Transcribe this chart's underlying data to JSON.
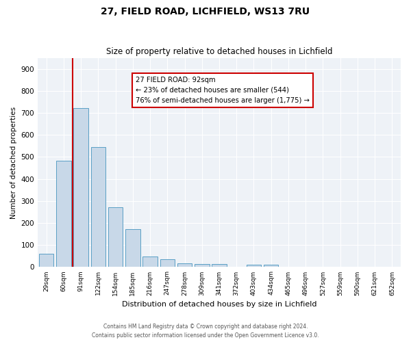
{
  "title1": "27, FIELD ROAD, LICHFIELD, WS13 7RU",
  "title2": "Size of property relative to detached houses in Lichfield",
  "xlabel": "Distribution of detached houses by size in Lichfield",
  "ylabel": "Number of detached properties",
  "categories": [
    "29sqm",
    "60sqm",
    "91sqm",
    "122sqm",
    "154sqm",
    "185sqm",
    "216sqm",
    "247sqm",
    "278sqm",
    "309sqm",
    "341sqm",
    "372sqm",
    "403sqm",
    "434sqm",
    "465sqm",
    "496sqm",
    "527sqm",
    "559sqm",
    "590sqm",
    "621sqm",
    "652sqm"
  ],
  "values": [
    60,
    483,
    722,
    544,
    272,
    172,
    48,
    35,
    18,
    14,
    14,
    0,
    10,
    10,
    0,
    0,
    0,
    0,
    0,
    0,
    0
  ],
  "bar_color": "#c8d8e8",
  "bar_edge_color": "#5a9fc5",
  "annotation_text1": "27 FIELD ROAD: 92sqm",
  "annotation_text2": "← 23% of detached houses are smaller (544)",
  "annotation_text3": "76% of semi-detached houses are larger (1,775) →",
  "vline_color": "#cc0000",
  "annotation_box_edge": "#cc0000",
  "ylim": [
    0,
    950
  ],
  "yticks": [
    0,
    100,
    200,
    300,
    400,
    500,
    600,
    700,
    800,
    900
  ],
  "footer1": "Contains HM Land Registry data © Crown copyright and database right 2024.",
  "footer2": "Contains public sector information licensed under the Open Government Licence v3.0.",
  "bg_color": "#eef2f7"
}
